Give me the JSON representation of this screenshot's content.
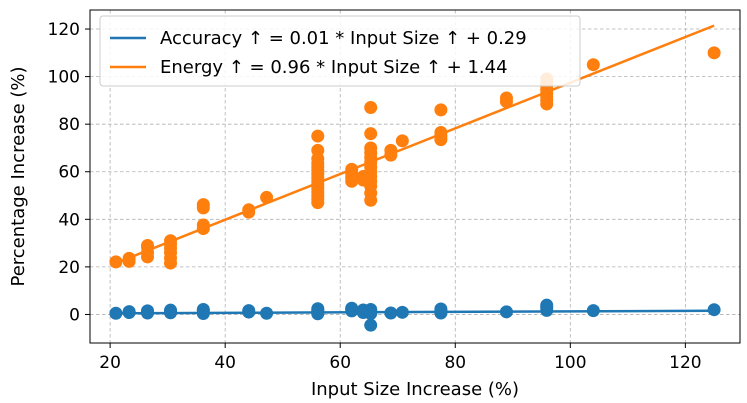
{
  "chart_data": {
    "type": "scatter",
    "title": "",
    "xlabel": "Input Size Increase (%)",
    "ylabel": "Percentage Increase (%)",
    "xlim": [
      16.5,
      129.5
    ],
    "ylim": [
      -12,
      128
    ],
    "xticks": [
      20,
      40,
      60,
      80,
      100,
      120
    ],
    "yticks": [
      0,
      20,
      40,
      60,
      80,
      100,
      120
    ],
    "grid": true,
    "legend_position": "top-left",
    "series": [
      {
        "name": "Accuracy ↑ = 0.01 * Input Size ↑ + 0.29",
        "color": "#1f77b4",
        "fit": {
          "slope": 0.01,
          "intercept": 0.29
        },
        "points": [
          [
            21,
            0.5
          ],
          [
            23.3,
            0.8
          ],
          [
            23.3,
            1.2
          ],
          [
            26.5,
            0.6
          ],
          [
            26.5,
            1.5
          ],
          [
            26.5,
            0.9
          ],
          [
            30.5,
            0.7
          ],
          [
            30.5,
            1.3
          ],
          [
            30.5,
            1.8
          ],
          [
            36.2,
            0.4
          ],
          [
            36.2,
            1.6
          ],
          [
            36.2,
            2.1
          ],
          [
            44.1,
            1.0
          ],
          [
            44.1,
            1.6
          ],
          [
            47.2,
            0.5
          ],
          [
            56.1,
            0.3
          ],
          [
            56.1,
            1.8
          ],
          [
            56.1,
            2.4
          ],
          [
            56.1,
            1.2
          ],
          [
            62,
            1.5
          ],
          [
            62,
            2.6
          ],
          [
            62,
            2.2
          ],
          [
            64,
            0.8
          ],
          [
            64,
            1.9
          ],
          [
            65.3,
            0.4
          ],
          [
            65.3,
            2.1
          ],
          [
            65.3,
            1.2
          ],
          [
            65.3,
            -4.5
          ],
          [
            68.8,
            0.6
          ],
          [
            70.8,
            0.9
          ],
          [
            77.5,
            0.6
          ],
          [
            77.5,
            1.4
          ],
          [
            77.5,
            2.3
          ],
          [
            88.9,
            1.1
          ],
          [
            95.9,
            1.7
          ],
          [
            95.9,
            2.9
          ],
          [
            95.9,
            3.9
          ],
          [
            104,
            1.6
          ],
          [
            125,
            2.0
          ]
        ]
      },
      {
        "name": "Energy ↑ = 0.96 * Input Size ↑ + 1.44",
        "color": "#ff7f0e",
        "fit": {
          "slope": 0.96,
          "intercept": 1.44
        },
        "points": [
          [
            21,
            22.1
          ],
          [
            23.3,
            22.3
          ],
          [
            23.3,
            23.6
          ],
          [
            26.5,
            24.2
          ],
          [
            26.5,
            26.1
          ],
          [
            26.5,
            28.3
          ],
          [
            26.5,
            29.0
          ],
          [
            30.5,
            21.6
          ],
          [
            30.5,
            23.7
          ],
          [
            30.5,
            26.0
          ],
          [
            30.5,
            27.8
          ],
          [
            30.5,
            29.5
          ],
          [
            30.5,
            31.0
          ],
          [
            36.2,
            36.1
          ],
          [
            36.2,
            37.6
          ],
          [
            36.2,
            44.8
          ],
          [
            36.2,
            46.2
          ],
          [
            44.1,
            43.0
          ],
          [
            44.1,
            44.0
          ],
          [
            47.2,
            49.2
          ],
          [
            56.1,
            47.0
          ],
          [
            56.1,
            48.5
          ],
          [
            56.1,
            50.0
          ],
          [
            56.1,
            51.5
          ],
          [
            56.1,
            53.0
          ],
          [
            56.1,
            54.5
          ],
          [
            56.1,
            56.0
          ],
          [
            56.1,
            57.5
          ],
          [
            56.1,
            59.0
          ],
          [
            56.1,
            60.5
          ],
          [
            56.1,
            62.0
          ],
          [
            56.1,
            63.5
          ],
          [
            56.1,
            65.5
          ],
          [
            56.1,
            69.0
          ],
          [
            56.1,
            75.0
          ],
          [
            62,
            56.0
          ],
          [
            62,
            57.5
          ],
          [
            62,
            59.0
          ],
          [
            62,
            61.0
          ],
          [
            64,
            56.5
          ],
          [
            64,
            58.0
          ],
          [
            65.3,
            48.0
          ],
          [
            65.3,
            51.0
          ],
          [
            65.3,
            54.0
          ],
          [
            65.3,
            56.0
          ],
          [
            65.3,
            58.0
          ],
          [
            65.3,
            60.0
          ],
          [
            65.3,
            62.0
          ],
          [
            65.3,
            64.0
          ],
          [
            65.3,
            66.0
          ],
          [
            65.3,
            68.0
          ],
          [
            65.3,
            70.0
          ],
          [
            65.3,
            76.0
          ],
          [
            65.3,
            87.0
          ],
          [
            68.8,
            67.0
          ],
          [
            68.8,
            69.0
          ],
          [
            70.8,
            73.0
          ],
          [
            77.5,
            73.5
          ],
          [
            77.5,
            75.0
          ],
          [
            77.5,
            76.5
          ],
          [
            77.5,
            86.0
          ],
          [
            88.9,
            89.5
          ],
          [
            88.9,
            91.0
          ],
          [
            95.9,
            88.5
          ],
          [
            95.9,
            90.0
          ],
          [
            95.9,
            91.5
          ],
          [
            95.9,
            93.0
          ],
          [
            95.9,
            94.5
          ],
          [
            95.9,
            96.0
          ],
          [
            95.9,
            97.5
          ],
          [
            95.9,
            99.0
          ],
          [
            104,
            105.0
          ],
          [
            125,
            110.0
          ]
        ]
      }
    ]
  }
}
